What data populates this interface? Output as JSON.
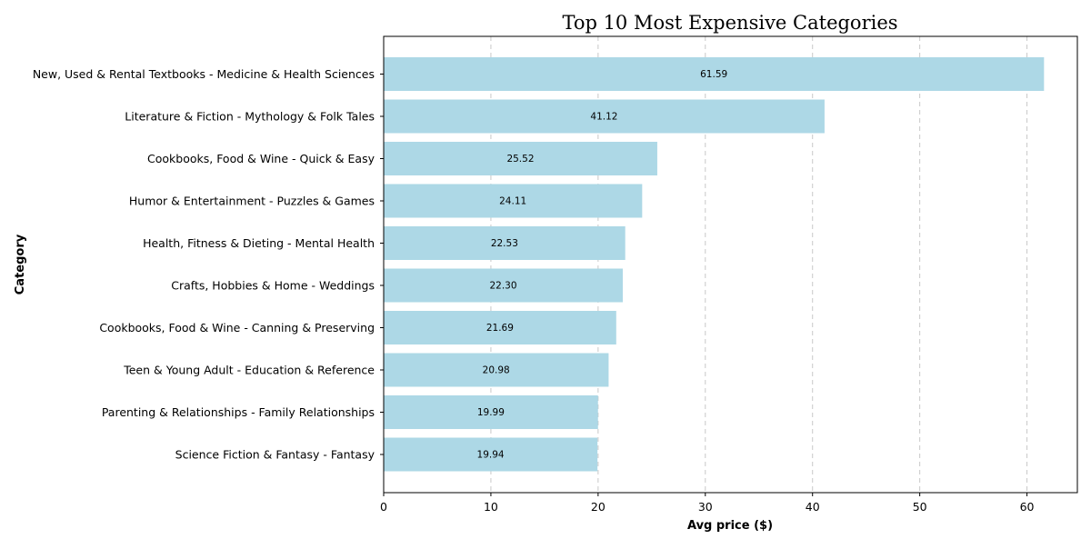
{
  "chart_data": {
    "type": "bar",
    "orientation": "horizontal",
    "title": "Top 10 Most Expensive Categories",
    "xlabel": "Avg price ($)",
    "ylabel": "Category",
    "xlim": [
      0,
      64.7
    ],
    "xticks": [
      0,
      10,
      20,
      30,
      40,
      50,
      60
    ],
    "grid": "x-dashed",
    "bar_color": "#add8e6",
    "categories": [
      "New, Used & Rental Textbooks - Medicine & Health Sciences",
      "Literature & Fiction - Mythology & Folk Tales",
      "Cookbooks, Food & Wine - Quick & Easy",
      "Humor & Entertainment - Puzzles & Games",
      "Health, Fitness & Dieting - Mental Health",
      "Crafts, Hobbies & Home - Weddings",
      "Cookbooks, Food & Wine - Canning & Preserving",
      "Teen & Young Adult - Education & Reference",
      "Parenting & Relationships - Family Relationships",
      "Science Fiction & Fantasy - Fantasy"
    ],
    "values": [
      61.59,
      41.12,
      25.52,
      24.11,
      22.53,
      22.3,
      21.69,
      20.98,
      19.99,
      19.94
    ],
    "value_labels": [
      "61.59",
      "41.12",
      "25.52",
      "24.11",
      "22.53",
      "22.30",
      "21.69",
      "20.98",
      "19.99",
      "19.94"
    ]
  }
}
